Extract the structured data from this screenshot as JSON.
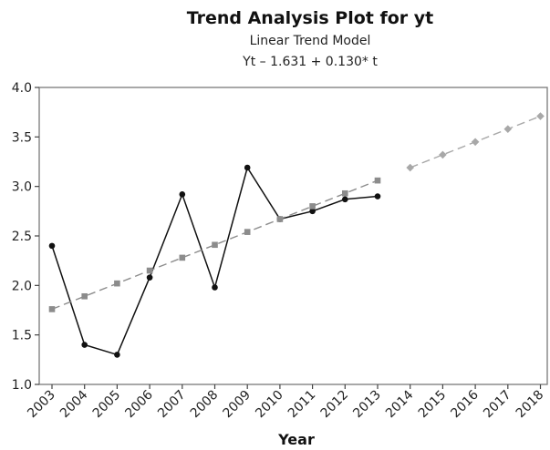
{
  "chart_data": {
    "type": "line",
    "title": "Trend Analysis Plot for yt",
    "subtitle": "Linear Trend Model",
    "equation": "Yt – 1.631 + 0.130* t",
    "xlabel": "Year",
    "ylabel": "",
    "ylim": [
      1.0,
      4.0
    ],
    "yticks": [
      "1.0",
      "1.5",
      "2.0",
      "2.5",
      "3.0",
      "3.5",
      "4.0"
    ],
    "categories": [
      "2003",
      "2004",
      "2005",
      "2006",
      "2007",
      "2008",
      "2009",
      "2010",
      "2011",
      "2012",
      "2013",
      "2014",
      "2015",
      "2016",
      "2017",
      "2018"
    ],
    "grid": false,
    "series": [
      {
        "values": [
          2.4,
          1.4,
          1.3,
          2.08,
          2.92,
          1.98,
          3.19,
          2.67,
          2.75,
          2.87,
          2.9,
          null,
          null,
          null,
          null,
          null
        ],
        "color": "#111111",
        "style": "solid",
        "marker": "circle"
      },
      {
        "values": [
          1.76,
          1.89,
          2.02,
          2.15,
          2.28,
          2.41,
          2.54,
          2.67,
          2.8,
          2.93,
          3.06,
          null,
          null,
          null,
          null,
          null
        ],
        "color": "#8c8c8c",
        "style": "dashed",
        "marker": "square"
      },
      {
        "values": [
          null,
          null,
          null,
          null,
          null,
          null,
          null,
          null,
          null,
          null,
          null,
          3.19,
          3.32,
          3.45,
          3.58,
          3.71
        ],
        "color": "#a8a8a8",
        "style": "dashed",
        "marker": "diamond"
      }
    ]
  }
}
